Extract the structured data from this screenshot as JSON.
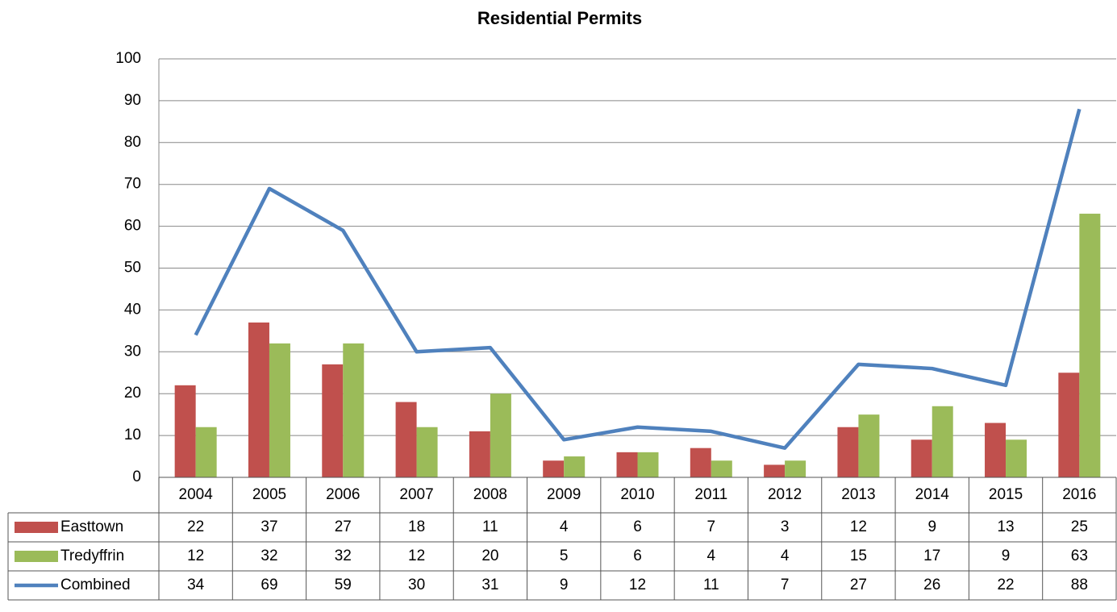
{
  "chart_data": {
    "type": "bar",
    "title": "Residential Permits",
    "categories": [
      "2004",
      "2005",
      "2006",
      "2007",
      "2008",
      "2009",
      "2010",
      "2011",
      "2012",
      "2013",
      "2014",
      "2015",
      "2016"
    ],
    "series": [
      {
        "name": "Easttown",
        "type": "bar",
        "color": "#c0504d",
        "values": [
          22,
          37,
          27,
          18,
          11,
          4,
          6,
          7,
          3,
          12,
          9,
          13,
          25
        ]
      },
      {
        "name": "Tredyffrin",
        "type": "bar",
        "color": "#9bbb59",
        "values": [
          12,
          32,
          32,
          12,
          20,
          5,
          6,
          4,
          4,
          15,
          17,
          9,
          63
        ]
      },
      {
        "name": "Combined",
        "type": "line",
        "color": "#4f81bd",
        "values": [
          34,
          69,
          59,
          30,
          31,
          9,
          12,
          11,
          7,
          27,
          26,
          22,
          88
        ]
      }
    ],
    "ylim": [
      0,
      100
    ],
    "yticks": [
      0,
      10,
      20,
      30,
      40,
      50,
      60,
      70,
      80,
      90,
      100
    ],
    "grid": true,
    "data_table": true
  }
}
